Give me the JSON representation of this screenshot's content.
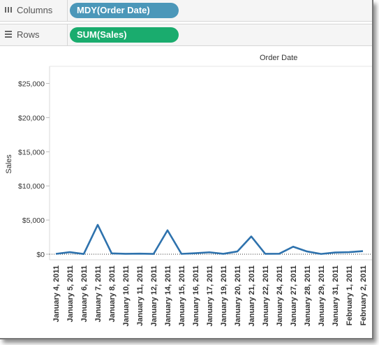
{
  "shelves": {
    "columns_label": "Columns",
    "columns_pill": "MDY(Order Date)",
    "rows_label": "Rows",
    "rows_pill": "SUM(Sales)"
  },
  "colors": {
    "columns_pill": "#4b97b9",
    "rows_pill": "#1aac6e",
    "line": "#2e72ad"
  },
  "chart_data": {
    "type": "line",
    "title": "",
    "column_header": "Order Date",
    "ylabel": "Sales",
    "ylim": [
      0,
      27500
    ],
    "yticks": [
      "$0",
      "$5,000",
      "$10,000",
      "$15,000",
      "$20,000",
      "$25,000"
    ],
    "ytick_values": [
      0,
      5000,
      10000,
      15000,
      20000,
      25000
    ],
    "categories": [
      "January 4, 2011",
      "January 5, 2011",
      "January 6, 2011",
      "January 7, 2011",
      "January 8, 2011",
      "January 10, 2011",
      "January 11, 2011",
      "January 12, 2011",
      "January 14, 2011",
      "January 15, 2011",
      "January 16, 2011",
      "January 17, 2011",
      "January 19, 2011",
      "January 20, 2011",
      "January 21, 2011",
      "January 22, 2011",
      "January 24, 2011",
      "January 27, 2011",
      "January 28, 2011",
      "January 29, 2011",
      "January 31, 2011",
      "February 1, 2011",
      "February 2, 2011"
    ],
    "values": [
      50,
      300,
      30,
      4300,
      120,
      60,
      80,
      40,
      3500,
      50,
      150,
      280,
      60,
      400,
      2600,
      60,
      70,
      1100,
      400,
      40,
      250,
      300,
      450
    ],
    "grid": false,
    "zero_line": "dotted"
  }
}
